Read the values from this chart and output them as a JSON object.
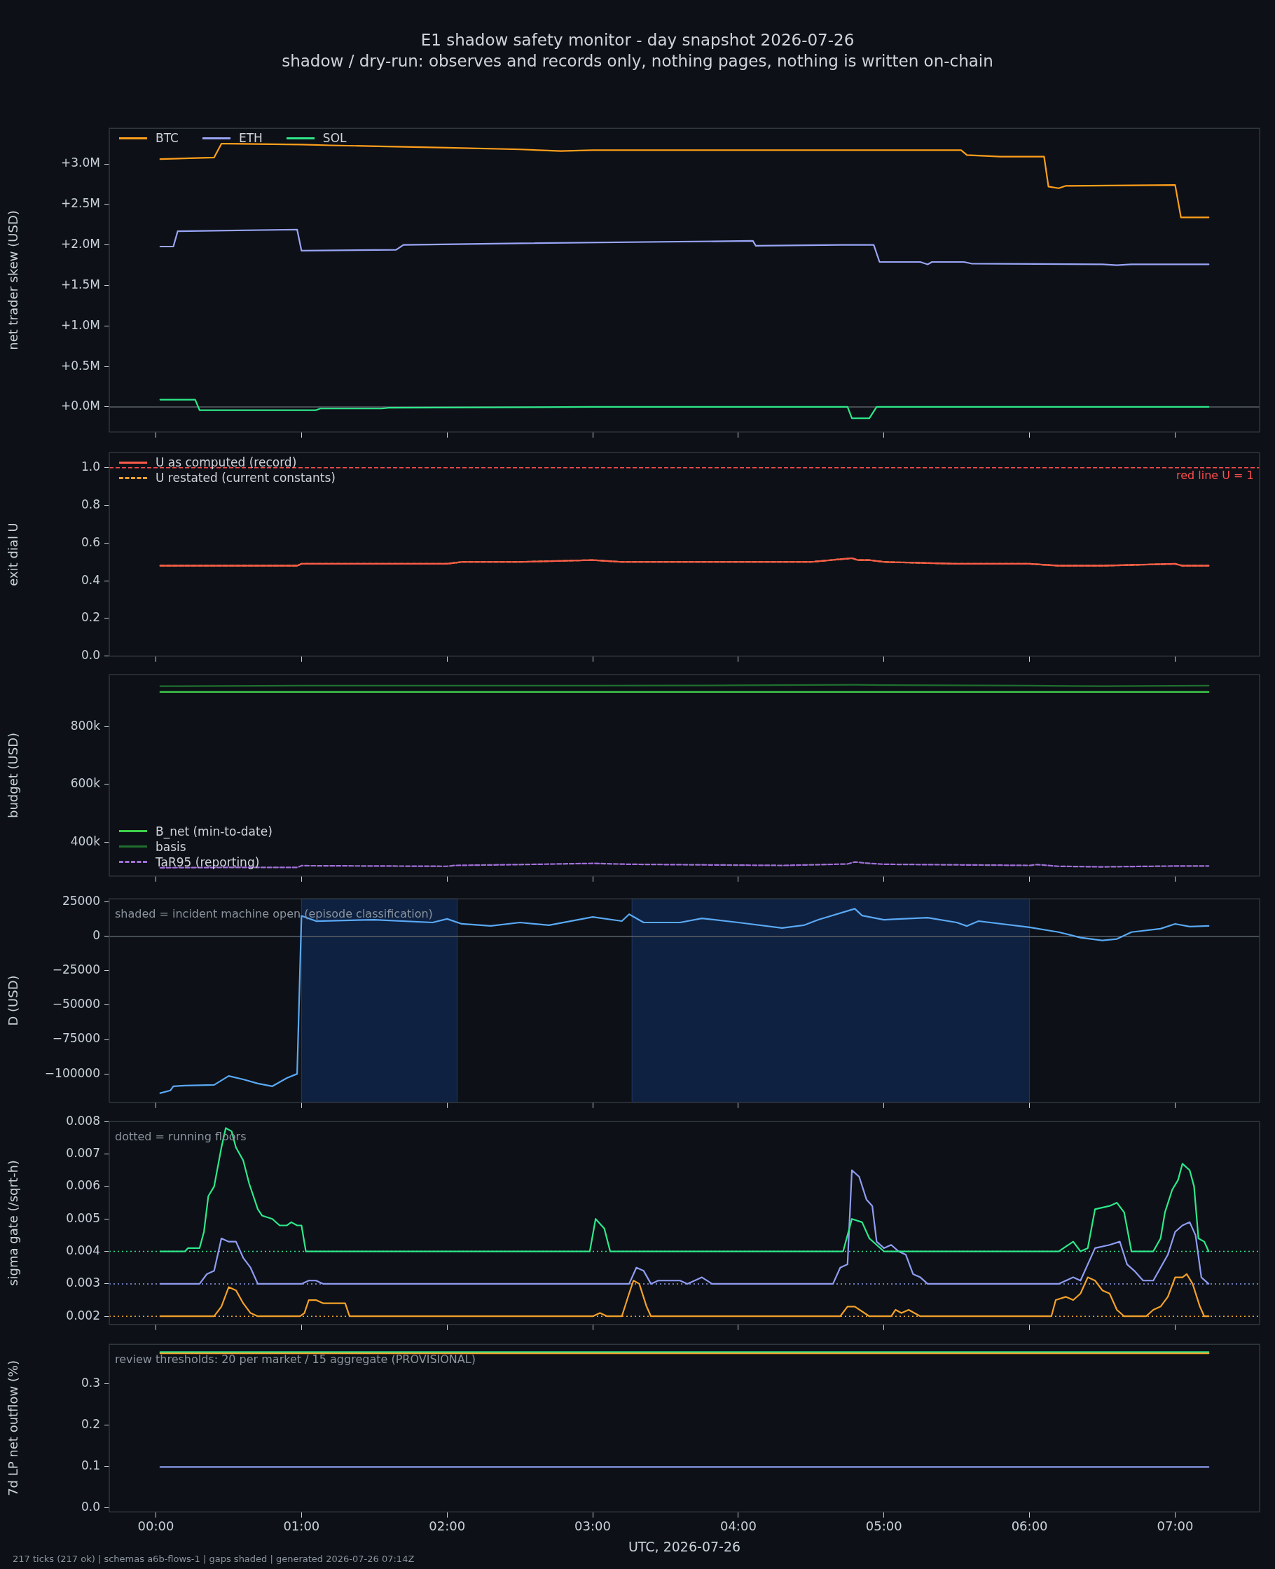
{
  "chart_data": [
    {
      "type": "line",
      "title": "E1 shadow safety monitor - day snapshot 2026-07-26",
      "subtitle": "shadow / dry-run: observes and records only, nothing pages, nothing is written on-chain",
      "ylabel": "net trader skew (USD)",
      "legend": "top left",
      "tick_labels": "y",
      "xlim": [
        -0.32,
        7.58
      ],
      "xticks": [
        {
          "value": 0,
          "label": null
        },
        {
          "value": 1,
          "label": null
        },
        {
          "value": 2,
          "label": null
        },
        {
          "value": 3,
          "label": null
        },
        {
          "value": 4,
          "label": null
        },
        {
          "value": 5,
          "label": null
        },
        {
          "value": 6,
          "label": null
        },
        {
          "value": 7,
          "label": null
        }
      ],
      "ylim": [
        -0.31,
        3.44
      ],
      "yticks": [
        {
          "value": 0,
          "label": "+0.0M"
        },
        {
          "value": 0.5,
          "label": "+0.5M"
        },
        {
          "value": 1,
          "label": "+1.0M"
        },
        {
          "value": 1.5,
          "label": "+1.5M"
        },
        {
          "value": 2,
          "label": "+2.0M"
        },
        {
          "value": 2.5,
          "label": "+2.5M"
        },
        {
          "value": 3,
          "label": "+3.0M"
        }
      ],
      "ref_lines": [
        {
          "axis": "y",
          "value": 0,
          "color": "#5a6069"
        }
      ],
      "series": [
        {
          "name": "BTC",
          "color": "#ff9f1c",
          "x": [
            0.03,
            0.4,
            0.45,
            0.5,
            1.0,
            1.2,
            1.47,
            2.0,
            2.5,
            2.78,
            3.0,
            4.0,
            5.0,
            5.53,
            5.57,
            5.8,
            6.1,
            6.13,
            6.2,
            6.25,
            7.0,
            7.04,
            7.23
          ],
          "values": [
            3.06,
            3.08,
            3.25,
            3.25,
            3.24,
            3.23,
            3.22,
            3.2,
            3.18,
            3.16,
            3.17,
            3.17,
            3.17,
            3.17,
            3.11,
            3.09,
            3.09,
            2.72,
            2.7,
            2.73,
            2.74,
            2.34,
            2.34
          ]
        },
        {
          "name": "ETH",
          "color": "#9aa5f7",
          "x": [
            0.03,
            0.12,
            0.15,
            0.97,
            1.0,
            1.65,
            1.7,
            2.5,
            4.1,
            4.12,
            4.7,
            4.93,
            4.97,
            5.25,
            5.3,
            5.33,
            5.55,
            5.6,
            6.5,
            6.6,
            6.7,
            7.23
          ],
          "values": [
            1.98,
            1.98,
            2.17,
            2.19,
            1.93,
            1.94,
            2.0,
            2.02,
            2.05,
            1.99,
            2.0,
            2.0,
            1.79,
            1.79,
            1.76,
            1.79,
            1.79,
            1.77,
            1.76,
            1.75,
            1.76,
            1.76
          ]
        },
        {
          "name": "SOL",
          "color": "#2ee88a",
          "x": [
            0.03,
            0.27,
            0.3,
            1.1,
            1.13,
            1.55,
            1.6,
            3.0,
            4.75,
            4.78,
            4.9,
            4.95,
            7.23
          ],
          "values": [
            0.09,
            0.09,
            -0.04,
            -0.04,
            -0.02,
            -0.02,
            -0.01,
            0.0,
            0.0,
            -0.14,
            -0.14,
            0.0,
            0.0
          ]
        }
      ]
    },
    {
      "type": "line",
      "ylabel": "exit dial U",
      "legend": "top left",
      "tick_labels": "y",
      "xlim": [
        -0.32,
        7.58
      ],
      "xticks": [
        {
          "value": 0,
          "label": null
        },
        {
          "value": 1,
          "label": null
        },
        {
          "value": 2,
          "label": null
        },
        {
          "value": 3,
          "label": null
        },
        {
          "value": 4,
          "label": null
        },
        {
          "value": 5,
          "label": null
        },
        {
          "value": 6,
          "label": null
        },
        {
          "value": 7,
          "label": null
        }
      ],
      "ylim": [
        0,
        1.08
      ],
      "yticks": [
        {
          "value": 0,
          "label": "0.0"
        },
        0.2,
        0.4,
        0.6,
        0.8,
        {
          "value": 1,
          "label": "1.0"
        }
      ],
      "ref_lines": [
        {
          "axis": "y",
          "value": 1,
          "label": "red line U = 1",
          "color": "#ff4d4d",
          "line_style": "dashed"
        }
      ],
      "series": [
        {
          "name": "U as computed (record)",
          "color": "#ff5a4a",
          "x": [
            0.03,
            0.5,
            0.75,
            0.97,
            1.0,
            1.5,
            2.0,
            2.1,
            2.5,
            3.0,
            3.2,
            3.5,
            4.0,
            4.5,
            4.78,
            4.82,
            4.9,
            5.0,
            5.5,
            6.0,
            6.2,
            6.5,
            7.0,
            7.05,
            7.23
          ],
          "values": [
            0.48,
            0.48,
            0.48,
            0.48,
            0.49,
            0.49,
            0.49,
            0.5,
            0.5,
            0.51,
            0.5,
            0.5,
            0.5,
            0.5,
            0.52,
            0.51,
            0.51,
            0.5,
            0.49,
            0.49,
            0.48,
            0.48,
            0.49,
            0.48,
            0.48
          ]
        },
        {
          "name": "U restated (current constants)",
          "color": "#f0a030",
          "line_style": "dashed",
          "x": [
            0.03,
            0.5,
            0.75,
            0.97,
            1.0,
            1.5,
            2.0,
            2.1,
            2.5,
            3.0,
            3.2,
            3.5,
            4.0,
            4.5,
            4.78,
            4.82,
            4.9,
            5.0,
            5.5,
            6.0,
            6.2,
            6.5,
            7.0,
            7.05,
            7.23
          ],
          "values": [
            0.48,
            0.48,
            0.48,
            0.48,
            0.49,
            0.49,
            0.49,
            0.5,
            0.5,
            0.51,
            0.5,
            0.5,
            0.5,
            0.5,
            0.52,
            0.51,
            0.51,
            0.5,
            0.49,
            0.49,
            0.48,
            0.48,
            0.49,
            0.48,
            0.48
          ]
        }
      ]
    },
    {
      "type": "line",
      "ylabel": "budget (USD)",
      "legend": "bottom left",
      "tick_labels": "y",
      "xlim": [
        -0.32,
        7.58
      ],
      "xticks": [
        {
          "value": 0,
          "label": null
        },
        {
          "value": 1,
          "label": null
        },
        {
          "value": 2,
          "label": null
        },
        {
          "value": 3,
          "label": null
        },
        {
          "value": 4,
          "label": null
        },
        {
          "value": 5,
          "label": null
        },
        {
          "value": 6,
          "label": null
        },
        {
          "value": 7,
          "label": null
        }
      ],
      "ylim": [
        283,
        980
      ],
      "yticks": [
        {
          "value": 400,
          "label": "400k"
        },
        {
          "value": 600,
          "label": "600k"
        },
        {
          "value": 800,
          "label": "800k"
        }
      ],
      "series": [
        {
          "name": "B_net (min-to-date)",
          "color": "#3ecf4a",
          "x": [
            0.03,
            7.23
          ],
          "values": [
            920,
            920
          ]
        },
        {
          "name": "basis",
          "color": "#1f6f2f",
          "x": [
            0.03,
            1.0,
            2.0,
            3.0,
            4.0,
            4.8,
            5.0,
            6.0,
            6.5,
            7.23
          ],
          "values": [
            940,
            942,
            942,
            942,
            943,
            945,
            944,
            942,
            940,
            942
          ]
        },
        {
          "name": "TaR95 (reporting)",
          "color": "#a070d8",
          "line_style": "dashed",
          "x": [
            0.03,
            0.5,
            0.97,
            1.0,
            1.5,
            2.0,
            2.05,
            2.5,
            3.0,
            3.25,
            3.5,
            4.0,
            4.3,
            4.5,
            4.75,
            4.8,
            4.9,
            5.0,
            5.5,
            6.0,
            6.05,
            6.2,
            6.5,
            7.0,
            7.23
          ],
          "values": [
            312,
            313,
            313,
            319,
            318,
            317,
            320,
            323,
            327,
            324,
            323,
            321,
            320,
            322,
            325,
            332,
            327,
            324,
            322,
            320,
            323,
            317,
            315,
            318,
            318
          ]
        }
      ]
    },
    {
      "type": "line",
      "ylabel": "D (USD)",
      "tick_labels": "y",
      "annotations": [
        "shaded = incident machine open (episode classification)"
      ],
      "xlim": [
        -0.32,
        7.58
      ],
      "xticks": [
        {
          "value": 0,
          "label": null
        },
        {
          "value": 1,
          "label": null
        },
        {
          "value": 2,
          "label": null
        },
        {
          "value": 3,
          "label": null
        },
        {
          "value": 4,
          "label": null
        },
        {
          "value": 5,
          "label": null
        },
        {
          "value": 6,
          "label": null
        },
        {
          "value": 7,
          "label": null
        }
      ],
      "ylim": [
        -120700,
        27200
      ],
      "yticks": [
        {
          "value": -100000,
          "label": "−100000"
        },
        {
          "value": -75000,
          "label": "−75000"
        },
        {
          "value": -50000,
          "label": "−50000"
        },
        {
          "value": -25000,
          "label": "−25000"
        },
        0,
        25000
      ],
      "ref_lines": [
        {
          "axis": "y",
          "value": 0,
          "color": "#5a6069"
        }
      ],
      "bands": [
        {
          "axis": "x",
          "from": 1.0,
          "to": 2.07,
          "color": "#0f2140"
        },
        {
          "axis": "x",
          "from": 3.27,
          "to": 6.0,
          "color": "#0f2140"
        }
      ],
      "series": [
        {
          "color": "#5aa9f5",
          "x": [
            0.03,
            0.1,
            0.12,
            0.2,
            0.4,
            0.5,
            0.6,
            0.7,
            0.8,
            0.9,
            0.97,
            1.0,
            1.1,
            1.5,
            1.9,
            2.0,
            2.1,
            2.3,
            2.5,
            2.7,
            3.0,
            3.2,
            3.25,
            3.35,
            3.6,
            3.75,
            4.0,
            4.3,
            4.45,
            4.55,
            4.8,
            4.85,
            5.0,
            5.3,
            5.5,
            5.57,
            5.65,
            6.0,
            6.2,
            6.35,
            6.5,
            6.6,
            6.7,
            6.9,
            7.0,
            7.1,
            7.23
          ],
          "values": [
            -114000,
            -112000,
            -109000,
            -108500,
            -108000,
            -101500,
            -104000,
            -107000,
            -109000,
            -103000,
            -100000,
            14800,
            11000,
            12000,
            10000,
            12600,
            9000,
            7500,
            10000,
            8000,
            14000,
            11000,
            16000,
            10000,
            10000,
            13000,
            10000,
            6000,
            8000,
            12000,
            20000,
            15000,
            12000,
            13500,
            10000,
            7400,
            11000,
            6500,
            3000,
            -1000,
            -3000,
            -2000,
            3000,
            5500,
            9000,
            7000,
            7500
          ]
        }
      ]
    },
    {
      "type": "line",
      "ylabel": "sigma gate (/sqrt-h)",
      "tick_labels": "y",
      "annotations": [
        "dotted = running floors"
      ],
      "xlim": [
        -0.32,
        7.58
      ],
      "xticks": [
        {
          "value": 0,
          "label": null
        },
        {
          "value": 1,
          "label": null
        },
        {
          "value": 2,
          "label": null
        },
        {
          "value": 3,
          "label": null
        },
        {
          "value": 4,
          "label": null
        },
        {
          "value": 5,
          "label": null
        },
        {
          "value": 6,
          "label": null
        },
        {
          "value": 7,
          "label": null
        }
      ],
      "ylim": [
        0.00175,
        0.008
      ],
      "yticks": [
        0.002,
        0.003,
        0.004,
        0.005,
        0.006,
        0.007,
        0.008
      ],
      "ref_lines": [
        {
          "axis": "y",
          "value": 0.004,
          "color": "#2ee88a",
          "line_style": "dotted"
        },
        {
          "axis": "y",
          "value": 0.003,
          "color": "#8f9cf2",
          "line_style": "dotted"
        },
        {
          "axis": "y",
          "value": 0.002,
          "color": "#f4a12a",
          "line_style": "dotted"
        }
      ],
      "series": [
        {
          "color": "#2ee88a",
          "x": [
            0.03,
            0.2,
            0.22,
            0.3,
            0.33,
            0.36,
            0.4,
            0.45,
            0.48,
            0.52,
            0.55,
            0.6,
            0.64,
            0.7,
            0.73,
            0.8,
            0.85,
            0.9,
            0.93,
            0.97,
            1.0,
            1.03,
            2.98,
            3.02,
            3.08,
            3.12,
            4.72,
            4.78,
            4.85,
            4.9,
            4.95,
            5.0,
            6.2,
            6.3,
            6.35,
            6.4,
            6.45,
            6.55,
            6.6,
            6.65,
            6.7,
            6.85,
            6.9,
            6.93,
            6.98,
            7.02,
            7.05,
            7.1,
            7.13,
            7.16,
            7.2,
            7.23
          ],
          "values": [
            0.004,
            0.004,
            0.0041,
            0.0041,
            0.0046,
            0.0057,
            0.006,
            0.0072,
            0.0078,
            0.0077,
            0.0072,
            0.0068,
            0.0061,
            0.0053,
            0.0051,
            0.005,
            0.0048,
            0.0048,
            0.0049,
            0.0048,
            0.0048,
            0.004,
            0.004,
            0.005,
            0.0047,
            0.004,
            0.004,
            0.005,
            0.0049,
            0.0044,
            0.0042,
            0.004,
            0.004,
            0.0043,
            0.004,
            0.0041,
            0.0053,
            0.0054,
            0.0055,
            0.0052,
            0.004,
            0.004,
            0.0044,
            0.0052,
            0.0059,
            0.0062,
            0.0067,
            0.0065,
            0.006,
            0.0044,
            0.0043,
            0.004
          ]
        },
        {
          "color": "#8f9cf2",
          "x": [
            0.03,
            0.3,
            0.35,
            0.4,
            0.45,
            0.5,
            0.55,
            0.6,
            0.65,
            0.7,
            1.0,
            1.05,
            1.1,
            1.15,
            3.25,
            3.3,
            3.35,
            3.4,
            3.45,
            3.6,
            3.65,
            3.75,
            3.82,
            4.65,
            4.7,
            4.75,
            4.78,
            4.83,
            4.88,
            4.92,
            4.95,
            5.0,
            5.05,
            5.1,
            5.15,
            5.2,
            5.25,
            5.3,
            6.2,
            6.3,
            6.35,
            6.45,
            6.55,
            6.62,
            6.67,
            6.72,
            6.78,
            6.85,
            6.9,
            6.95,
            7.0,
            7.05,
            7.1,
            7.14,
            7.18,
            7.23
          ],
          "values": [
            0.003,
            0.003,
            0.0033,
            0.0034,
            0.0044,
            0.0043,
            0.0043,
            0.0038,
            0.0035,
            0.003,
            0.003,
            0.0031,
            0.0031,
            0.003,
            0.003,
            0.0035,
            0.0034,
            0.003,
            0.0031,
            0.0031,
            0.003,
            0.0032,
            0.003,
            0.003,
            0.0035,
            0.0036,
            0.0065,
            0.0063,
            0.0056,
            0.0054,
            0.0043,
            0.0041,
            0.0042,
            0.004,
            0.0039,
            0.0033,
            0.0032,
            0.003,
            0.003,
            0.0032,
            0.0031,
            0.0041,
            0.0042,
            0.0043,
            0.0036,
            0.0034,
            0.0031,
            0.0031,
            0.0035,
            0.0039,
            0.0046,
            0.0048,
            0.0049,
            0.0045,
            0.0032,
            0.003
          ]
        },
        {
          "color": "#f4a12a",
          "x": [
            0.03,
            0.4,
            0.45,
            0.5,
            0.55,
            0.6,
            0.65,
            0.7,
            0.99,
            1.02,
            1.05,
            1.1,
            1.15,
            1.3,
            1.33,
            3.0,
            3.05,
            3.1,
            3.2,
            3.25,
            3.28,
            3.32,
            3.37,
            3.4,
            4.7,
            4.75,
            4.8,
            4.9,
            5.05,
            5.08,
            5.12,
            5.17,
            5.25,
            6.15,
            6.18,
            6.25,
            6.3,
            6.35,
            6.4,
            6.45,
            6.5,
            6.55,
            6.6,
            6.65,
            6.8,
            6.85,
            6.9,
            6.95,
            7.0,
            7.05,
            7.08,
            7.12,
            7.17,
            7.2,
            7.23
          ],
          "values": [
            0.002,
            0.002,
            0.0023,
            0.0029,
            0.0028,
            0.0024,
            0.0021,
            0.002,
            0.002,
            0.0021,
            0.0025,
            0.0025,
            0.0024,
            0.0024,
            0.002,
            0.002,
            0.0021,
            0.002,
            0.002,
            0.0027,
            0.0031,
            0.003,
            0.0023,
            0.002,
            0.002,
            0.0023,
            0.0023,
            0.002,
            0.002,
            0.0022,
            0.0021,
            0.0022,
            0.002,
            0.002,
            0.0025,
            0.0026,
            0.0025,
            0.0027,
            0.0032,
            0.0031,
            0.0028,
            0.0027,
            0.0022,
            0.002,
            0.002,
            0.0022,
            0.0023,
            0.0026,
            0.0032,
            0.0032,
            0.0033,
            0.003,
            0.0023,
            0.002,
            0.002
          ]
        }
      ]
    },
    {
      "type": "line",
      "ylabel": "7d LP net outflow (%)",
      "xlabel": "UTC, 2026-07-26",
      "annotations": [
        "review thresholds: 20 per market / 15 aggregate (PROVISIONAL)",
        "217 ticks (217 ok) | schemas a6b-flows-1 | gaps shaded | generated 2026-07-26 07:14Z"
      ],
      "xlim": [
        -0.32,
        7.58
      ],
      "xticks": [
        {
          "value": 0,
          "label": "00:00"
        },
        {
          "value": 1,
          "label": "01:00"
        },
        {
          "value": 2,
          "label": "02:00"
        },
        {
          "value": 3,
          "label": "03:00"
        },
        {
          "value": 4,
          "label": "04:00"
        },
        {
          "value": 5,
          "label": "05:00"
        },
        {
          "value": 6,
          "label": "06:00"
        },
        {
          "value": 7,
          "label": "07:00"
        }
      ],
      "ylim": [
        -0.01,
        0.396
      ],
      "yticks": [
        {
          "value": 0,
          "label": "0.0"
        },
        0.1,
        0.2,
        0.3
      ],
      "series": [
        {
          "color": "#f4a12a",
          "x": [
            0.03,
            7.23
          ],
          "values": [
            0.374,
            0.374
          ]
        },
        {
          "color": "#2ee88a",
          "x": [
            0.03,
            7.23
          ],
          "values": [
            0.377,
            0.377
          ]
        },
        {
          "color": "#8f9cf2",
          "x": [
            0.03,
            7.23
          ],
          "values": [
            0.099,
            0.099
          ]
        }
      ]
    }
  ]
}
